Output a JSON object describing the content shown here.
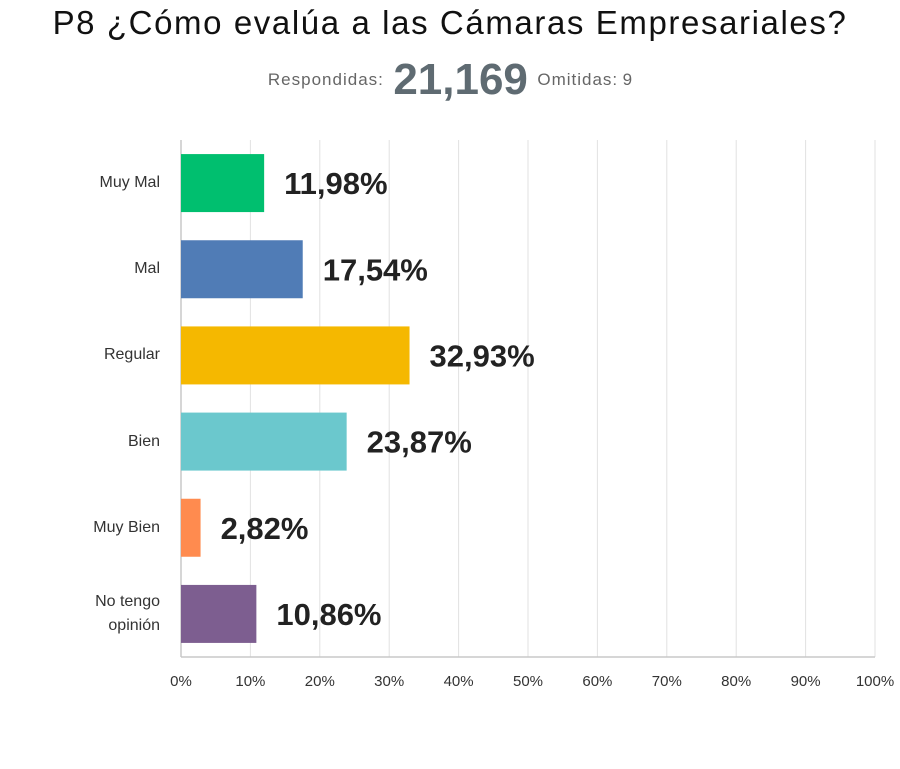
{
  "title": "P8 ¿Cómo evalúa a las Cámaras Empresariales?",
  "summary": {
    "answered_label": "Respondidas:",
    "answered_value": "21,169",
    "skipped_label": "Omitidas:",
    "skipped_value": "9"
  },
  "chart_data": {
    "type": "bar",
    "orientation": "horizontal",
    "categories": [
      "Muy Mal",
      "Mal",
      "Regular",
      "Bien",
      "Muy Bien",
      "No tengo opinión"
    ],
    "values": [
      11.98,
      17.54,
      32.93,
      23.87,
      2.82,
      10.86
    ],
    "value_labels": [
      "11,98%",
      "17,54%",
      "32,93%",
      "23,87%",
      "2,82%",
      "10,86%"
    ],
    "colors": [
      "#00bf6f",
      "#507cb6",
      "#f5b800",
      "#6bc8cd",
      "#ff8b4f",
      "#7d5e90"
    ],
    "xlim": [
      0,
      100
    ],
    "ticks": [
      "0%",
      "10%",
      "20%",
      "30%",
      "40%",
      "50%",
      "60%",
      "70%",
      "80%",
      "90%",
      "100%"
    ],
    "grid": true
  }
}
